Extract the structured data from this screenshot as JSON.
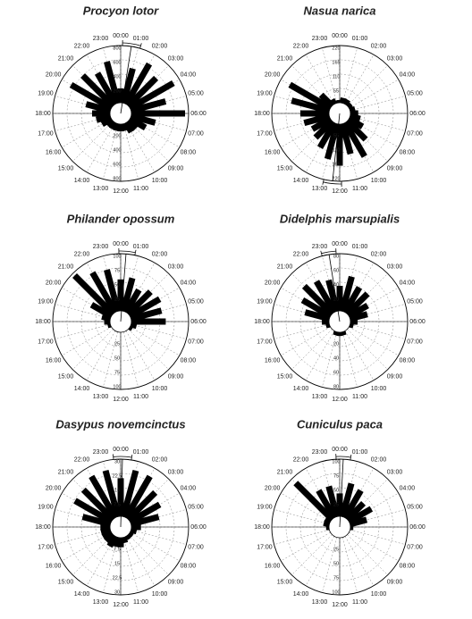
{
  "chart_data": [
    {
      "type": "rose",
      "title": "Procyon lotor",
      "categories": [
        "00:00",
        "01:00",
        "02:00",
        "03:00",
        "04:00",
        "05:00",
        "06:00",
        "07:00",
        "08:00",
        "09:00",
        "10:00",
        "11:00",
        "12:00",
        "13:00",
        "14:00",
        "15:00",
        "16:00",
        "17:00",
        "18:00",
        "19:00",
        "20:00",
        "21:00",
        "22:00",
        "23:00"
      ],
      "values": [
        200,
        500,
        650,
        550,
        700,
        500,
        750,
        350,
        250,
        150,
        150,
        100,
        100,
        100,
        100,
        100,
        150,
        200,
        250,
        350,
        650,
        600,
        500,
        600
      ],
      "ylim": [
        0,
        800
      ],
      "yticks": [
        200,
        400,
        600,
        800
      ],
      "color": "#000000",
      "mean_vector": {
        "hour": 0.6,
        "length": 800,
        "ci_hours": [
          0.1,
          1.1
        ]
      }
    },
    {
      "type": "rose",
      "title": "Nasua narica",
      "categories": [
        "00:00",
        "01:00",
        "02:00",
        "03:00",
        "04:00",
        "05:00",
        "06:00",
        "07:00",
        "08:00",
        "09:00",
        "10:00",
        "11:00",
        "12:00",
        "13:00",
        "14:00",
        "15:00",
        "16:00",
        "17:00",
        "18:00",
        "19:00",
        "20:00",
        "21:00",
        "22:00",
        "23:00"
      ],
      "values": [
        10,
        20,
        20,
        15,
        15,
        20,
        30,
        40,
        60,
        100,
        150,
        120,
        160,
        140,
        110,
        90,
        80,
        100,
        110,
        150,
        180,
        60,
        20,
        10
      ],
      "ylim": [
        0,
        220
      ],
      "yticks": [
        55,
        110,
        165,
        220
      ],
      "color": "#000000",
      "mean_vector": {
        "hour": 12.4,
        "length": 220,
        "ci_hours": [
          11.9,
          12.9
        ]
      }
    },
    {
      "type": "rose",
      "title": "Philander opossum",
      "categories": [
        "00:00",
        "01:00",
        "02:00",
        "03:00",
        "04:00",
        "05:00",
        "06:00",
        "07:00",
        "08:00",
        "09:00",
        "10:00",
        "11:00",
        "12:00",
        "13:00",
        "14:00",
        "15:00",
        "16:00",
        "17:00",
        "18:00",
        "19:00",
        "20:00",
        "21:00",
        "22:00",
        "23:00"
      ],
      "values": [
        55,
        60,
        45,
        55,
        60,
        55,
        60,
        10,
        5,
        0,
        0,
        0,
        0,
        0,
        0,
        0,
        0,
        5,
        10,
        15,
        40,
        95,
        80,
        75
      ],
      "ylim": [
        0,
        100
      ],
      "yticks": [
        25,
        50,
        75,
        100
      ],
      "color": "#000000",
      "mean_vector": {
        "hour": 0.3,
        "length": 100,
        "ci_hours": [
          23.9,
          0.8
        ]
      }
    },
    {
      "type": "rose",
      "title": "Didelphis marsupialis",
      "categories": [
        "00:00",
        "01:00",
        "02:00",
        "03:00",
        "04:00",
        "05:00",
        "06:00",
        "07:00",
        "08:00",
        "09:00",
        "10:00",
        "11:00",
        "12:00",
        "13:00",
        "14:00",
        "15:00",
        "16:00",
        "17:00",
        "18:00",
        "19:00",
        "20:00",
        "21:00",
        "22:00",
        "23:00"
      ],
      "values": [
        35,
        50,
        40,
        40,
        30,
        25,
        10,
        5,
        0,
        0,
        0,
        5,
        5,
        5,
        0,
        0,
        0,
        5,
        10,
        35,
        45,
        55,
        50,
        45
      ],
      "ylim": [
        0,
        80
      ],
      "yticks": [
        20,
        40,
        60,
        80
      ],
      "color": "#000000",
      "mean_vector": {
        "hour": 23.4,
        "length": 80,
        "ci_hours": [
          23.0,
          23.8
        ]
      }
    },
    {
      "type": "rose",
      "title": "Dasypus novemcinctus",
      "categories": [
        "00:00",
        "01:00",
        "02:00",
        "03:00",
        "04:00",
        "05:00",
        "06:00",
        "07:00",
        "08:00",
        "09:00",
        "10:00",
        "11:00",
        "12:00",
        "13:00",
        "14:00",
        "15:00",
        "16:00",
        "17:00",
        "18:00",
        "19:00",
        "20:00",
        "21:00",
        "22:00",
        "23:00"
      ],
      "values": [
        20,
        25,
        25,
        20,
        18,
        15,
        5,
        3,
        2,
        2,
        2,
        3,
        5,
        5,
        6,
        5,
        5,
        5,
        5,
        15,
        22,
        22,
        25,
        25
      ],
      "ylim": [
        0,
        30
      ],
      "yticks": [
        7.5,
        15,
        22.5,
        30
      ],
      "color": "#000000",
      "mean_vector": {
        "hour": 0.1,
        "length": 30,
        "ci_hours": [
          23.6,
          0.6
        ]
      }
    },
    {
      "type": "rose",
      "title": "Cuniculus paca",
      "categories": [
        "00:00",
        "01:00",
        "02:00",
        "03:00",
        "04:00",
        "05:00",
        "06:00",
        "07:00",
        "08:00",
        "09:00",
        "10:00",
        "11:00",
        "12:00",
        "13:00",
        "14:00",
        "15:00",
        "16:00",
        "17:00",
        "18:00",
        "19:00",
        "20:00",
        "21:00",
        "22:00",
        "23:00"
      ],
      "values": [
        40,
        60,
        55,
        40,
        45,
        30,
        5,
        0,
        0,
        0,
        0,
        0,
        0,
        0,
        0,
        0,
        0,
        0,
        5,
        10,
        10,
        90,
        55,
        55
      ],
      "ylim": [
        0,
        100
      ],
      "yticks": [
        25,
        50,
        75,
        100
      ],
      "color": "#000000",
      "mean_vector": {
        "hour": 0.2,
        "length": 100,
        "ci_hours": [
          23.8,
          0.6
        ]
      }
    }
  ]
}
